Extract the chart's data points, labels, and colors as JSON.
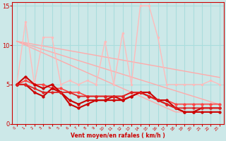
{
  "background_color": "#cce8e8",
  "grid_color": "#aadddd",
  "xlabel": "Vent moyen/en rafales ( km/h )",
  "xlabel_color": "#cc0000",
  "tick_color": "#cc0000",
  "xlim": [
    -0.5,
    23.5
  ],
  "ylim": [
    0,
    15.5
  ],
  "yticks": [
    0,
    5,
    10,
    15
  ],
  "xticks": [
    0,
    1,
    2,
    3,
    4,
    5,
    6,
    7,
    8,
    9,
    10,
    11,
    12,
    13,
    14,
    15,
    16,
    17,
    18,
    19,
    20,
    21,
    22,
    23
  ],
  "series": [
    {
      "color": "#ffaaaa",
      "linewidth": 1.0,
      "marker": null,
      "markersize": 0,
      "y": [
        10.5,
        10.3,
        10.1,
        9.9,
        9.7,
        9.5,
        9.3,
        9.1,
        8.9,
        8.7,
        8.5,
        8.3,
        8.1,
        7.9,
        7.7,
        7.5,
        7.3,
        7.1,
        6.9,
        6.7,
        6.5,
        6.3,
        6.1,
        5.9
      ]
    },
    {
      "color": "#ffaaaa",
      "linewidth": 1.0,
      "marker": null,
      "markersize": 0,
      "y": [
        10.5,
        10.15,
        9.8,
        9.45,
        9.1,
        8.75,
        8.4,
        8.05,
        7.7,
        7.35,
        7.0,
        6.65,
        6.3,
        5.95,
        5.6,
        5.25,
        4.9,
        4.55,
        4.2,
        3.85,
        3.5,
        3.15,
        2.8,
        2.45
      ]
    },
    {
      "color": "#ffaaaa",
      "linewidth": 1.0,
      "marker": null,
      "markersize": 0,
      "y": [
        10.5,
        10.0,
        9.5,
        9.0,
        8.5,
        8.0,
        7.5,
        7.0,
        6.5,
        6.0,
        5.5,
        5.0,
        4.5,
        4.0,
        3.5,
        3.0,
        2.5,
        2.0,
        1.5,
        1.5,
        1.5,
        1.5,
        1.5,
        1.5
      ]
    },
    {
      "color": "#ffbbbb",
      "linewidth": 1.0,
      "marker": "o",
      "markersize": 2.0,
      "y": [
        5.0,
        13.0,
        5.0,
        11.0,
        11.0,
        5.0,
        5.5,
        5.0,
        5.5,
        5.0,
        10.5,
        5.0,
        11.5,
        5.0,
        15.0,
        15.0,
        11.0,
        5.0,
        5.0,
        5.0,
        5.0,
        5.0,
        5.5,
        5.0
      ]
    },
    {
      "color": "#ff4444",
      "linewidth": 1.2,
      "marker": "o",
      "markersize": 2.5,
      "y": [
        5.0,
        5.5,
        5.0,
        5.0,
        4.5,
        4.5,
        4.0,
        4.0,
        3.5,
        3.5,
        3.5,
        3.5,
        3.5,
        4.0,
        4.0,
        3.5,
        3.0,
        3.0,
        2.5,
        2.5,
        2.5,
        2.5,
        2.5,
        2.5
      ]
    },
    {
      "color": "#cc0000",
      "linewidth": 1.5,
      "marker": "o",
      "markersize": 2.5,
      "y": [
        5.0,
        6.0,
        5.0,
        4.5,
        5.0,
        4.0,
        2.5,
        2.0,
        2.5,
        3.0,
        3.0,
        3.0,
        3.0,
        3.5,
        4.0,
        3.5,
        3.0,
        3.0,
        2.0,
        1.5,
        1.5,
        2.0,
        2.0,
        2.0
      ]
    },
    {
      "color": "#cc0000",
      "linewidth": 1.5,
      "marker": "o",
      "markersize": 2.5,
      "y": [
        5.0,
        5.0,
        4.0,
        3.5,
        4.5,
        4.0,
        3.0,
        2.5,
        3.0,
        3.0,
        3.0,
        3.5,
        3.0,
        3.5,
        4.0,
        4.0,
        3.0,
        2.5,
        2.0,
        1.5,
        1.5,
        1.5,
        1.5,
        1.5
      ]
    },
    {
      "color": "#dd2222",
      "linewidth": 1.3,
      "marker": "o",
      "markersize": 2.5,
      "y": [
        5.0,
        5.0,
        4.5,
        4.0,
        4.0,
        4.0,
        4.0,
        3.5,
        3.5,
        3.5,
        3.5,
        3.5,
        3.5,
        4.0,
        4.0,
        3.5,
        3.0,
        2.5,
        2.0,
        2.0,
        2.0,
        2.0,
        2.0,
        2.0
      ]
    }
  ]
}
